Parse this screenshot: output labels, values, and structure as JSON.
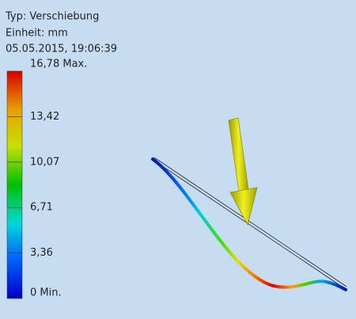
{
  "info": {
    "type_line": "Typ: Verschiebung",
    "unit_line": "Einheit: mm",
    "date_line": "05.05.2015, 19:06:39"
  },
  "legend": {
    "labels": [
      "16,78 Max.",
      "13,42",
      "10,07",
      "6,71",
      "3,36",
      "0 Min."
    ]
  }
}
